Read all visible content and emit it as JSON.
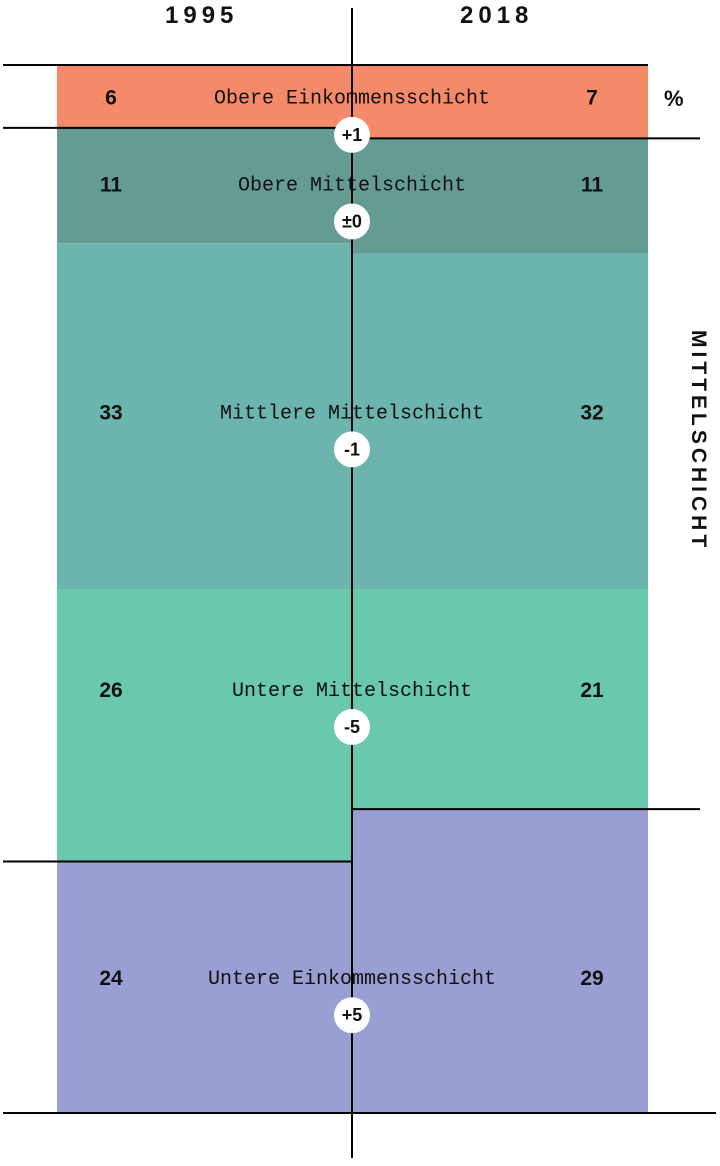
{
  "chart_data": {
    "type": "bar",
    "orientation": "stacked-comparison",
    "years": [
      "1995",
      "2018"
    ],
    "unit": "%",
    "group_label": "MITTELSCHICHT",
    "segments": [
      {
        "name": "Obere Einkommensschicht",
        "v1995": 6,
        "v2018": 7,
        "change": "+1",
        "color": "#f58a6b"
      },
      {
        "name": "Obere Mittelschicht",
        "v1995": 11,
        "v2018": 11,
        "change": "±0",
        "color": "#649c94"
      },
      {
        "name": "Mittlere Mittelschicht",
        "v1995": 33,
        "v2018": 32,
        "change": "-1",
        "color": "#6cb5af"
      },
      {
        "name": "Untere Mittelschicht",
        "v1995": 26,
        "v2018": 21,
        "change": "-5",
        "color": "#6ac8ac"
      },
      {
        "name": "Untere Einkommensschicht",
        "v1995": 24,
        "v2018": 29,
        "change": "+5",
        "color": "#9a9fd3"
      }
    ]
  }
}
